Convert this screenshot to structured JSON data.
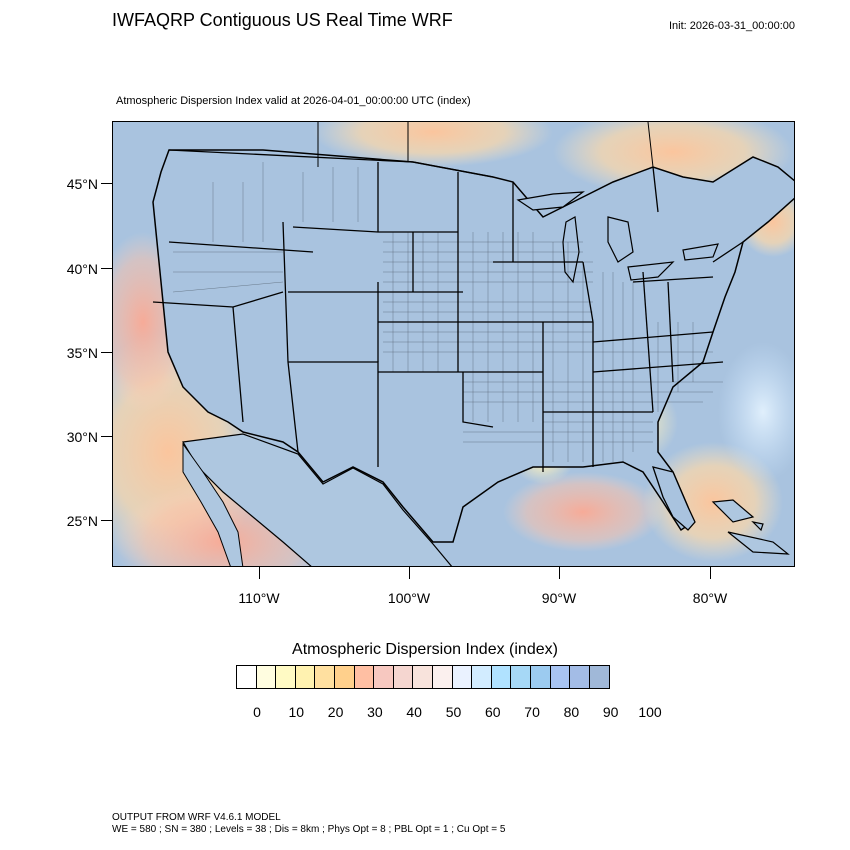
{
  "header": {
    "title": "IWFAQRP Contiguous US Real Time WRF",
    "init": "Init: 2026-03-31_00:00:00",
    "subtitle": "Atmospheric Dispersion Index valid at 2026-04-01_00:00:00 UTC   (index)"
  },
  "axes": {
    "lat_labels": [
      "45°N",
      "40°N",
      "35°N",
      "30°N",
      "25°N"
    ],
    "lon_labels": [
      "110°W",
      "100°W",
      "90°W",
      "80°W"
    ]
  },
  "colorbar": {
    "title": "Atmospheric Dispersion Index  (index)",
    "tick_labels": [
      "0",
      "10",
      "20",
      "30",
      "40",
      "50",
      "60",
      "70",
      "80",
      "90",
      "100"
    ],
    "colors": [
      "#ffffff",
      "#fffde0",
      "#fffac4",
      "#fff2b0",
      "#ffe0a0",
      "#ffd08c",
      "#ffbfa3",
      "#f7c8c0",
      "#f5d6d0",
      "#f8e3dc",
      "#fbf0ee",
      "#eaf2ff",
      "#d2ecff",
      "#b0e2ff",
      "#a6d8f6",
      "#9ccbf0",
      "#a8c4f2",
      "#a3bce6",
      "#a0b8d8"
    ]
  },
  "map": {
    "ocean_color": "#a9c3df",
    "land_color": "#a9c3df",
    "low_color": "#ffd6a6",
    "hot_color": "#ffb3a0"
  },
  "footer": {
    "line1": "OUTPUT FROM WRF V4.6.1 MODEL",
    "line2": "WE = 580 ; SN = 380 ; Levels = 38 ; Dis = 8km ; Phys Opt = 8 ; PBL Opt = 1 ; Cu Opt = 5"
  }
}
